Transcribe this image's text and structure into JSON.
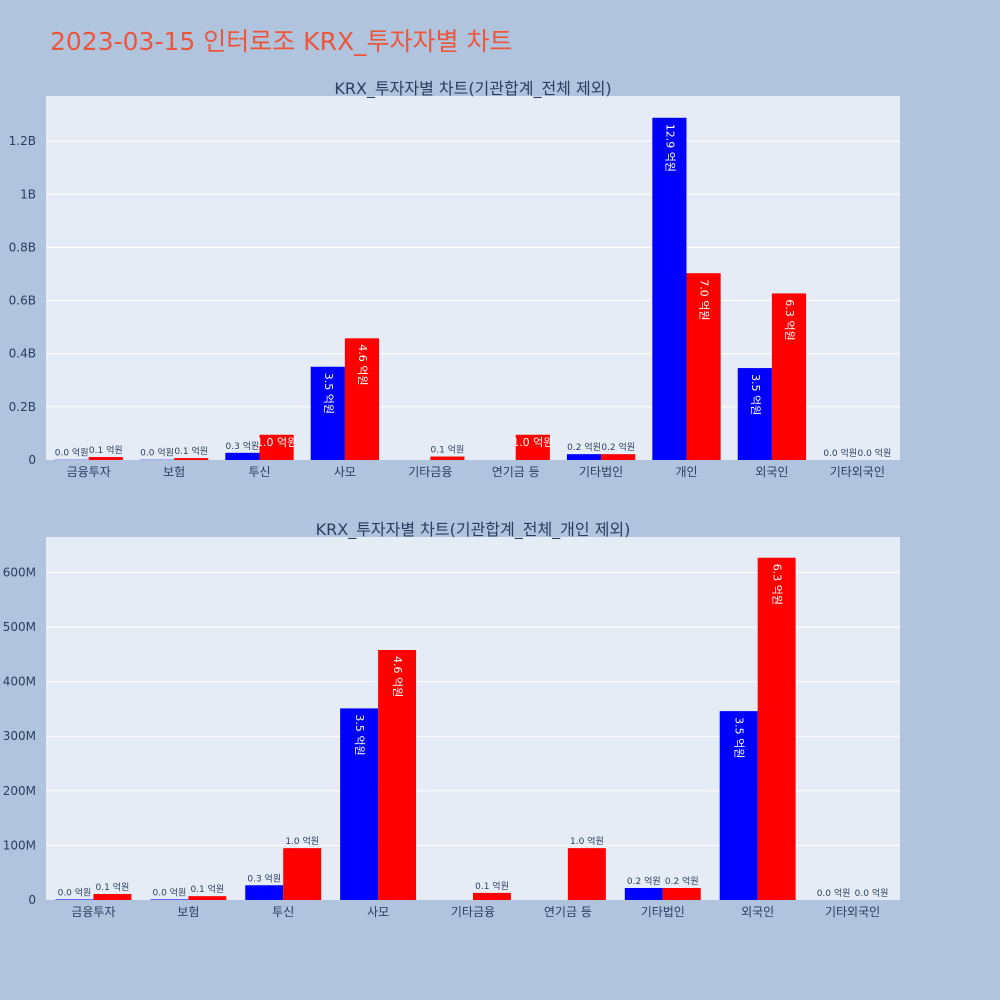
{
  "page": {
    "title": "2023-03-15 인터로조 KRX_투자자별 차트",
    "colors": {
      "background": "#b0c4de",
      "plot_background": "#e5ecf6",
      "title": "#ef553b",
      "buy": "#0000ff",
      "sell": "#ff0000"
    }
  },
  "chart_data": [
    {
      "type": "bar",
      "title": "KRX_투자자별 차트(기관합계_전체 제외)",
      "categories": [
        "금융투자",
        "보험",
        "투신",
        "사모",
        "기타금융",
        "연기금 등",
        "기타법인",
        "개인",
        "외국인",
        "기타외국인"
      ],
      "ytick_labels": [
        "0",
        "0.2B",
        "0.4B",
        "0.6B",
        "0.8B",
        "1B",
        "1.2B"
      ],
      "ytick_values": [
        0,
        200000000,
        400000000,
        600000000,
        800000000,
        1000000000,
        1200000000
      ],
      "ylim": [
        0,
        1370000000
      ],
      "grid": true,
      "series": [
        {
          "color": "#0000ff",
          "values": [
            1000000,
            1000000,
            27000000,
            351000000,
            0,
            0,
            22000000,
            1288000000,
            346000000,
            0
          ],
          "labels": [
            "0.0 억원",
            "0.0 억원",
            "0.3 억원",
            "3.5 억원",
            "",
            "",
            "0.2 억원",
            "12.9 억원",
            "3.5 억원",
            "0.0 억원"
          ]
        },
        {
          "color": "#ff0000",
          "values": [
            11000000,
            7000000,
            95000000,
            458000000,
            13000000,
            95000000,
            22000000,
            703000000,
            627000000,
            0
          ],
          "labels": [
            "0.1 억원",
            "0.1 억원",
            "1.0 억원",
            "4.6 억원",
            "0.1 억원",
            "1.0 억원",
            "0.2 억원",
            "7.0 억원",
            "6.3 억원",
            "0.0 억원"
          ]
        }
      ]
    },
    {
      "type": "bar",
      "title": "KRX_투자자별 차트(기관합계_전체_개인 제외)",
      "categories": [
        "금융투자",
        "보험",
        "투신",
        "사모",
        "기타금융",
        "연기금 등",
        "기타법인",
        "외국인",
        "기타외국인"
      ],
      "ytick_labels": [
        "0",
        "100M",
        "200M",
        "300M",
        "400M",
        "500M",
        "600M"
      ],
      "ytick_values": [
        0,
        100000000,
        200000000,
        300000000,
        400000000,
        500000000,
        600000000
      ],
      "ylim": [
        0,
        665000000
      ],
      "grid": true,
      "series": [
        {
          "color": "#0000ff",
          "values": [
            1000000,
            1000000,
            27000000,
            351000000,
            0,
            0,
            22000000,
            346000000,
            0
          ],
          "labels": [
            "0.0 억원",
            "0.0 억원",
            "0.3 억원",
            "3.5 억원",
            "",
            "",
            "0.2 억원",
            "3.5 억원",
            "0.0 억원"
          ]
        },
        {
          "color": "#ff0000",
          "values": [
            11000000,
            7000000,
            95000000,
            458000000,
            13000000,
            95000000,
            22000000,
            627000000,
            0
          ],
          "labels": [
            "0.1 억원",
            "0.1 억원",
            "1.0 억원",
            "4.6 억원",
            "0.1 억원",
            "1.0 억원",
            "0.2 억원",
            "6.3 억원",
            "0.0 억원"
          ]
        }
      ]
    }
  ]
}
